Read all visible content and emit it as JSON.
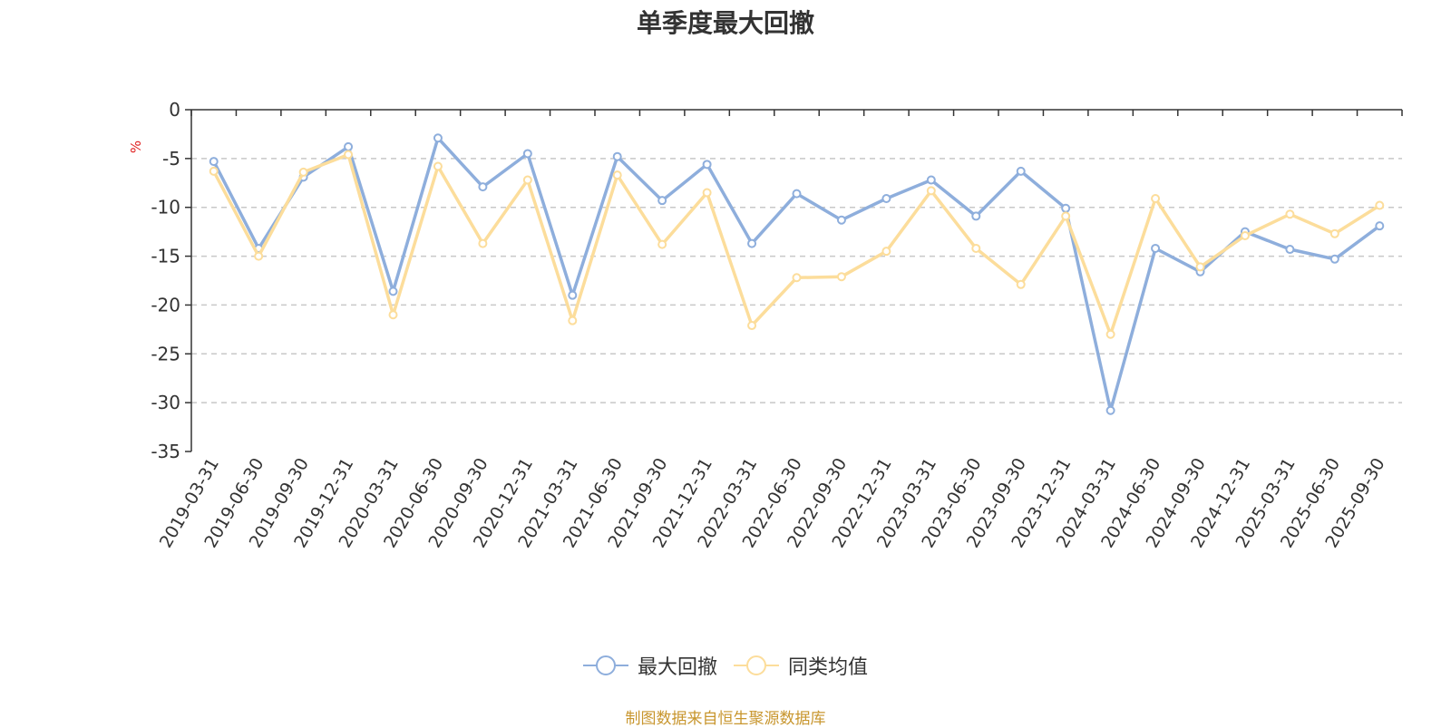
{
  "chart_data": {
    "type": "line",
    "title": "单季度最大回撤",
    "ylabel": "%",
    "ylim": [
      -35,
      0
    ],
    "yticks": [
      0,
      -5,
      -10,
      -15,
      -20,
      -25,
      -30,
      -35
    ],
    "grid": true,
    "legend_position": "bottom",
    "categories": [
      "2019-03-31",
      "2019-06-30",
      "2019-09-30",
      "2019-12-31",
      "2020-03-31",
      "2020-06-30",
      "2020-09-30",
      "2020-12-31",
      "2021-03-31",
      "2021-06-30",
      "2021-09-30",
      "2021-12-31",
      "2022-03-31",
      "2022-06-30",
      "2022-09-30",
      "2022-12-31",
      "2023-03-31",
      "2023-06-30",
      "2023-09-30",
      "2023-12-31",
      "2024-03-31",
      "2024-06-30",
      "2024-09-30",
      "2024-12-31",
      "2025-03-31",
      "2025-06-30",
      "2025-09-30"
    ],
    "series": [
      {
        "name": "最大回撤",
        "color": "#8eaedc",
        "values": [
          -5.3,
          -14.2,
          -6.9,
          -3.8,
          -18.6,
          -2.9,
          -7.9,
          -4.5,
          -19.0,
          -4.8,
          -9.3,
          -5.6,
          -13.7,
          -8.6,
          -11.3,
          -9.1,
          -7.2,
          -10.9,
          -6.3,
          -10.1,
          -30.8,
          -14.2,
          -16.6,
          -12.5,
          -14.3,
          -15.3,
          -11.9
        ]
      },
      {
        "name": "同类均值",
        "color": "#fcdd9b",
        "values": [
          -6.3,
          -15.0,
          -6.4,
          -4.6,
          -21.0,
          -5.8,
          -13.7,
          -7.2,
          -21.6,
          -6.7,
          -13.8,
          -8.5,
          -22.1,
          -17.2,
          -17.1,
          -14.5,
          -8.3,
          -14.2,
          -17.9,
          -10.9,
          -23.0,
          -9.1,
          -16.1,
          -12.9,
          -10.7,
          -12.7,
          -9.8
        ]
      }
    ]
  },
  "source_text": "制图数据来自恒生聚源数据库",
  "source_color": "#c8962e"
}
